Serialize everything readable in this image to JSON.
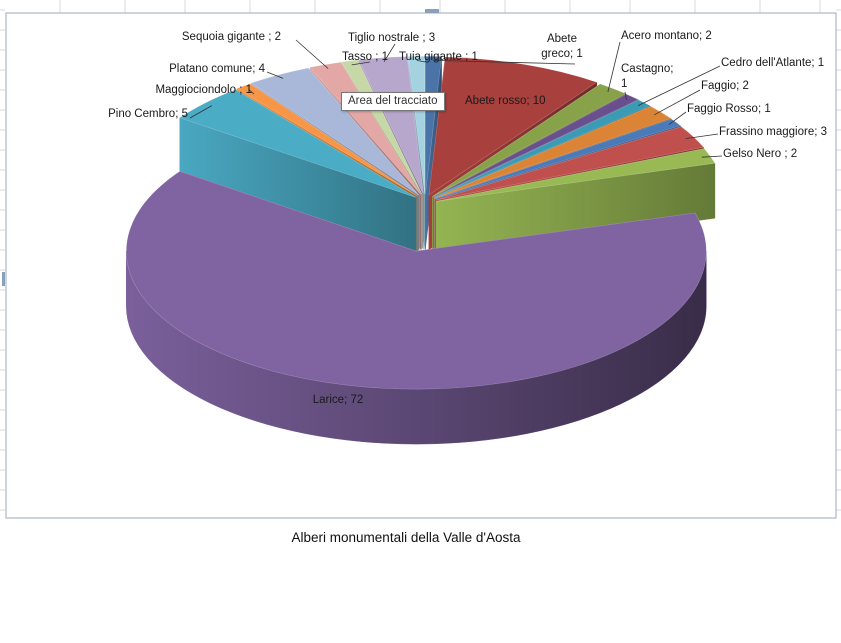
{
  "tooltip": "Area del tracciato",
  "chart_data": {
    "type": "pie",
    "title": "Alberi monumentali della Valle d'Aosta",
    "categories": [
      "Abete greco",
      "Abete rosso",
      "Acero montano",
      "Castagno",
      "Cedro dell'Atlante",
      "Faggio",
      "Faggio Rosso",
      "Frassino maggiore",
      "Gelso Nero",
      "Larice",
      "Pino Cembro",
      "Maggiociondolo",
      "Platano comune",
      "Sequoia gigante",
      "Tasso",
      "Tiglio nostrale",
      "Tuia gigante"
    ],
    "values": [
      1,
      10,
      2,
      1,
      1,
      2,
      1,
      3,
      2,
      72,
      5,
      1,
      4,
      2,
      1,
      3,
      1
    ],
    "labels": [
      "Abete greco; 1",
      "Abete rosso; 10",
      "Acero montano; 2",
      "Castagno; 1",
      "Cedro dell'Atlante; 1",
      "Faggio; 2",
      "Faggio Rosso; 1",
      "Frassino maggiore; 3",
      "Gelso Nero ; 2",
      "Larice; 72",
      "Pino Cembro; 5",
      "Maggiociondolo ; 1",
      "Platano comune; 4",
      "Sequoia gigante ; 2",
      "Tasso ; 1",
      "Tiglio nostrale ; 3",
      "Tuia gigante ; 1"
    ],
    "label_lines": [
      [
        "Abete",
        "greco; 1"
      ],
      [
        "Abete rosso; 10"
      ],
      [
        "Acero montano; 2"
      ],
      [
        "Castagno;",
        "1"
      ],
      [
        "Cedro dell'Atlante; 1"
      ],
      [
        "Faggio; 2"
      ],
      [
        "Faggio Rosso; 1"
      ],
      [
        "Frassino maggiore; 3"
      ],
      [
        "Gelso Nero ; 2"
      ],
      [
        "Larice; 72"
      ],
      [
        "Pino Cembro; 5"
      ],
      [
        "Maggiociondolo ; 1"
      ],
      [
        "Platano comune; 4"
      ],
      [
        "Sequoia gigante ; 2"
      ],
      [
        "Tasso ; 1"
      ],
      [
        "Tiglio nostrale ; 3"
      ],
      [
        "Tuia gigante ; 1"
      ]
    ],
    "colors": [
      "#4a74a8",
      "#a8403d",
      "#88a24a",
      "#6a4f8e",
      "#3b9ab4",
      "#dc8436",
      "#4a7ab8",
      "#c0504d",
      "#98b954",
      "#8064a2",
      "#4bacc6",
      "#f79646",
      "#a9b8d9",
      "#e3a8a6",
      "#c5d8a5",
      "#b8a7cd",
      "#a5d2e0"
    ],
    "style": "3d-exploded",
    "legend": "none"
  }
}
